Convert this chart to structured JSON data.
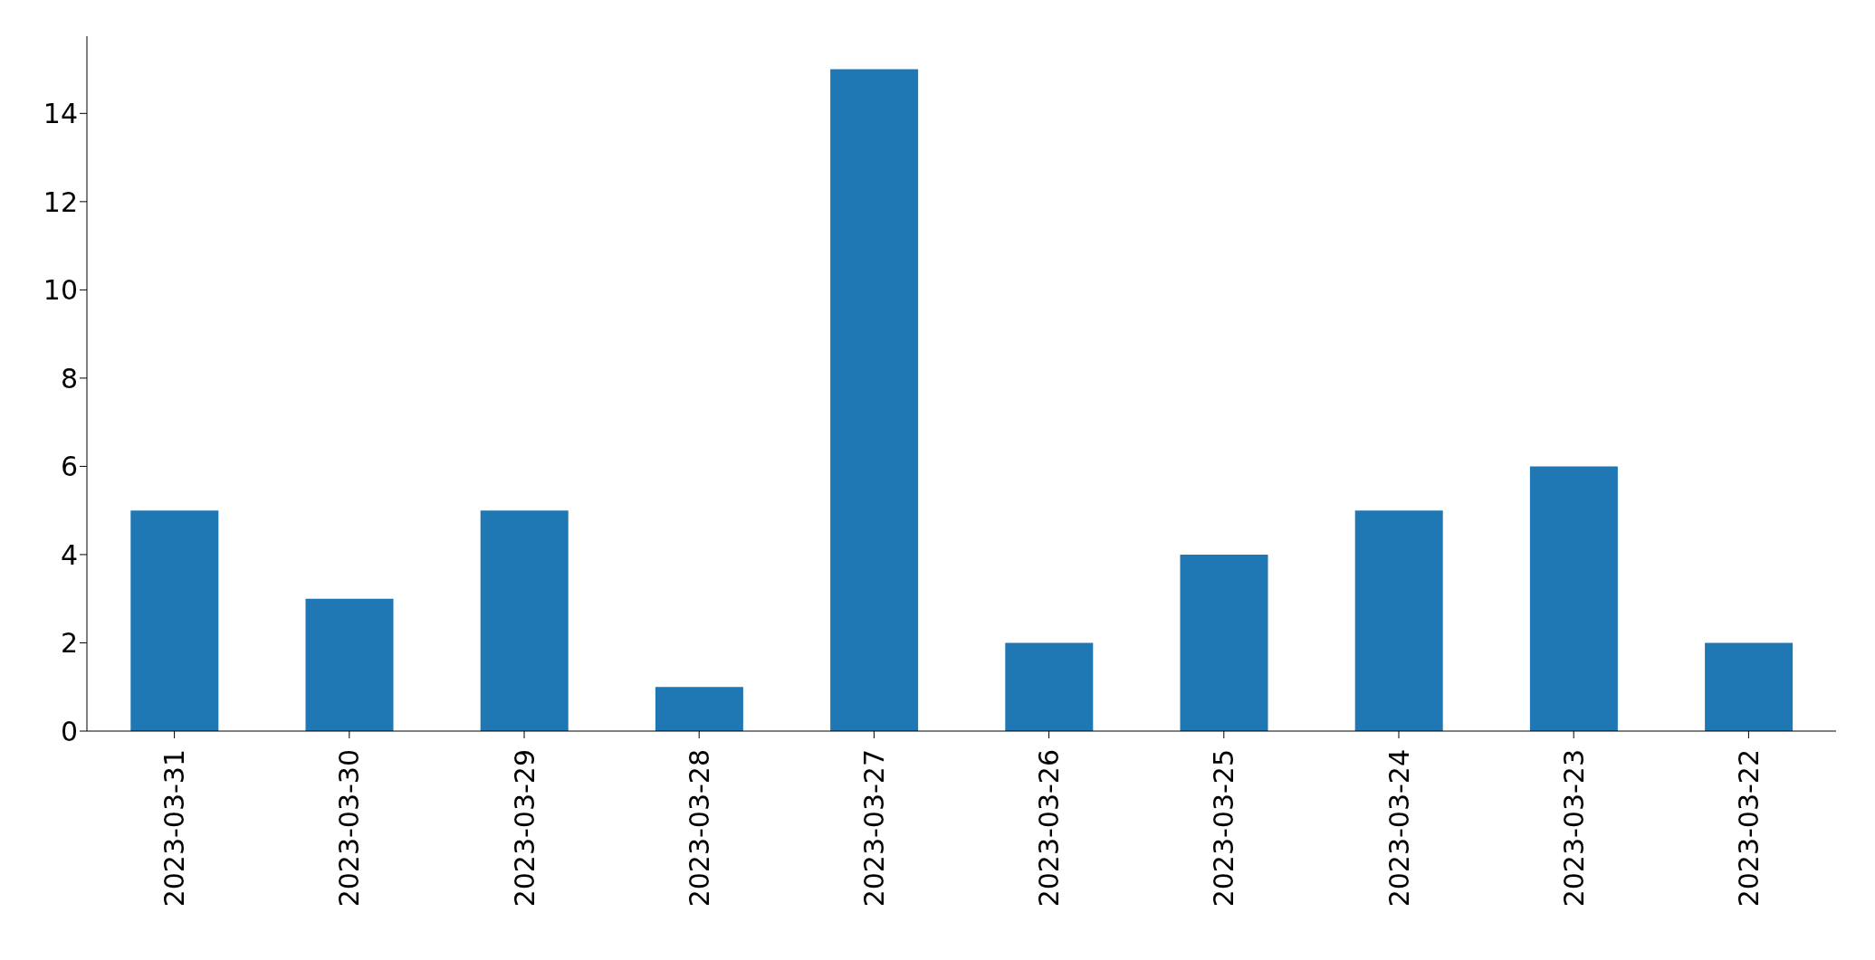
{
  "chart_data": {
    "type": "bar",
    "categories": [
      "2023-03-31",
      "2023-03-30",
      "2023-03-29",
      "2023-03-28",
      "2023-03-27",
      "2023-03-26",
      "2023-03-25",
      "2023-03-24",
      "2023-03-23",
      "2023-03-22"
    ],
    "values": [
      5,
      3,
      5,
      1,
      15,
      2,
      4,
      5,
      6,
      2
    ],
    "color": "#1f77b4",
    "ylim": [
      0,
      15.75
    ],
    "yticks": [
      0,
      2,
      4,
      6,
      8,
      10,
      12,
      14
    ],
    "grid": false
  }
}
